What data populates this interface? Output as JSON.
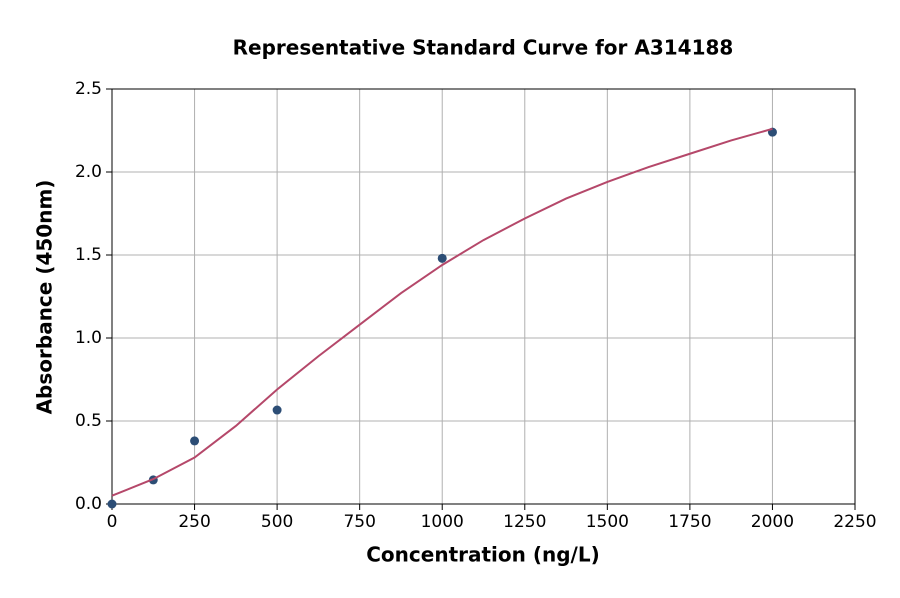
{
  "chart_data": {
    "type": "scatter",
    "title": "Representative Standard Curve for A314188",
    "x_label": "Concentration (ng/L)",
    "y_label": "Absorbance (450nm)",
    "series": [
      {
        "color": "#2c4d75",
        "mode": "markers",
        "x": [
          0,
          125,
          250,
          500,
          1000,
          2000
        ],
        "values": [
          0.0,
          0.145,
          0.38,
          0.566,
          1.48,
          2.24
        ]
      },
      {
        "color": "#b5486a",
        "mode": "line",
        "x": [
          0,
          125,
          250,
          375,
          500,
          625,
          750,
          875,
          1000,
          1125,
          1250,
          1375,
          1500,
          1625,
          1750,
          1875,
          2000
        ],
        "values": [
          0.05,
          0.15,
          0.28,
          0.47,
          0.69,
          0.89,
          1.08,
          1.27,
          1.44,
          1.59,
          1.72,
          1.84,
          1.94,
          2.03,
          2.11,
          2.19,
          2.26
        ]
      }
    ],
    "xlim": [
      0,
      2250
    ],
    "xticks": [
      0,
      250,
      500,
      750,
      1000,
      1250,
      1500,
      1750,
      2000,
      2250
    ],
    "ylim": [
      0,
      2.5
    ],
    "yticks": [
      {
        "value": 0,
        "label": "0.0"
      },
      0.5,
      {
        "value": 1,
        "label": "1.0"
      },
      1.5,
      {
        "value": 2,
        "label": "2.0"
      },
      2.5
    ],
    "grid": true
  }
}
